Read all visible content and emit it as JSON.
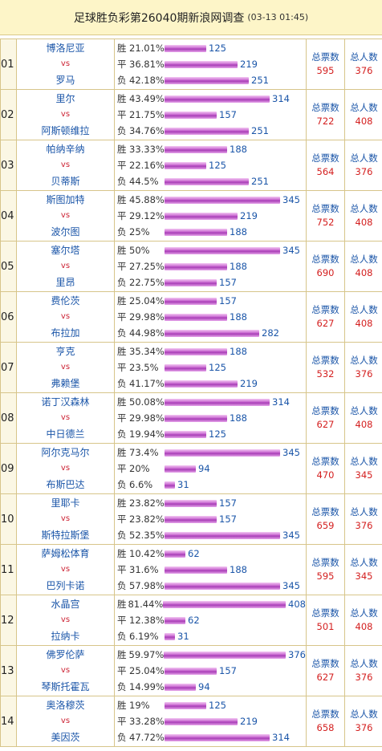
{
  "header": {
    "title": "足球胜负彩第26040期新浪网调查",
    "time": "(03-13 01:45)"
  },
  "labels": {
    "win": "胜",
    "draw": "平",
    "loss": "负",
    "vs": "vs",
    "total_votes": "总票数",
    "total_people": "总人数"
  },
  "colors": {
    "team": "#1a55a8",
    "vs": "#c23333",
    "value": "#d42020",
    "bar": "#c766cf",
    "header_bg": "#fdf5c8"
  },
  "matches": [
    {
      "no": "01",
      "home": "博洛尼亚",
      "away": "罗马",
      "win": {
        "pct": "21.01%",
        "count": "125",
        "v": 125
      },
      "draw": {
        "pct": "36.81%",
        "count": "219",
        "v": 219
      },
      "loss": {
        "pct": "42.18%",
        "count": "251",
        "v": 251
      },
      "total": "595",
      "people": "376"
    },
    {
      "no": "02",
      "home": "里尔",
      "away": "阿斯顿维拉",
      "win": {
        "pct": "43.49%",
        "count": "314",
        "v": 314
      },
      "draw": {
        "pct": "21.75%",
        "count": "157",
        "v": 157
      },
      "loss": {
        "pct": "34.76%",
        "count": "251",
        "v": 251
      },
      "total": "722",
      "people": "408"
    },
    {
      "no": "03",
      "home": "帕纳辛纳",
      "away": "贝蒂斯",
      "win": {
        "pct": "33.33%",
        "count": "188",
        "v": 188
      },
      "draw": {
        "pct": "22.16%",
        "count": "125",
        "v": 125
      },
      "loss": {
        "pct": "44.5%",
        "count": "251",
        "v": 251
      },
      "total": "564",
      "people": "376"
    },
    {
      "no": "04",
      "home": "斯图加特",
      "away": "波尔图",
      "win": {
        "pct": "45.88%",
        "count": "345",
        "v": 345
      },
      "draw": {
        "pct": "29.12%",
        "count": "219",
        "v": 219
      },
      "loss": {
        "pct": "25%",
        "count": "188",
        "v": 188
      },
      "total": "752",
      "people": "408"
    },
    {
      "no": "05",
      "home": "塞尔塔",
      "away": "里昂",
      "win": {
        "pct": "50%",
        "count": "345",
        "v": 345
      },
      "draw": {
        "pct": "27.25%",
        "count": "188",
        "v": 188
      },
      "loss": {
        "pct": "22.75%",
        "count": "157",
        "v": 157
      },
      "total": "690",
      "people": "408"
    },
    {
      "no": "06",
      "home": "费伦茨",
      "away": "布拉加",
      "win": {
        "pct": "25.04%",
        "count": "157",
        "v": 157
      },
      "draw": {
        "pct": "29.98%",
        "count": "188",
        "v": 188
      },
      "loss": {
        "pct": "44.98%",
        "count": "282",
        "v": 282
      },
      "total": "627",
      "people": "408"
    },
    {
      "no": "07",
      "home": "亨克",
      "away": "弗赖堡",
      "win": {
        "pct": "35.34%",
        "count": "188",
        "v": 188
      },
      "draw": {
        "pct": "23.5%",
        "count": "125",
        "v": 125
      },
      "loss": {
        "pct": "41.17%",
        "count": "219",
        "v": 219
      },
      "total": "532",
      "people": "376"
    },
    {
      "no": "08",
      "home": "诺丁汉森林",
      "away": "中日德兰",
      "win": {
        "pct": "50.08%",
        "count": "314",
        "v": 314
      },
      "draw": {
        "pct": "29.98%",
        "count": "188",
        "v": 188
      },
      "loss": {
        "pct": "19.94%",
        "count": "125",
        "v": 125
      },
      "total": "627",
      "people": "408"
    },
    {
      "no": "09",
      "home": "阿尔克马尔",
      "away": "布斯巴达",
      "win": {
        "pct": "73.4%",
        "count": "345",
        "v": 345
      },
      "draw": {
        "pct": "20%",
        "count": "94",
        "v": 94
      },
      "loss": {
        "pct": "6.6%",
        "count": "31",
        "v": 31
      },
      "total": "470",
      "people": "345"
    },
    {
      "no": "10",
      "home": "里耶卡",
      "away": "斯特拉斯堡",
      "win": {
        "pct": "23.82%",
        "count": "157",
        "v": 157
      },
      "draw": {
        "pct": "23.82%",
        "count": "157",
        "v": 157
      },
      "loss": {
        "pct": "52.35%",
        "count": "345",
        "v": 345
      },
      "total": "659",
      "people": "376"
    },
    {
      "no": "11",
      "home": "萨姆松体育",
      "away": "巴列卡诺",
      "win": {
        "pct": "10.42%",
        "count": "62",
        "v": 62
      },
      "draw": {
        "pct": "31.6%",
        "count": "188",
        "v": 188
      },
      "loss": {
        "pct": "57.98%",
        "count": "345",
        "v": 345
      },
      "total": "595",
      "people": "345"
    },
    {
      "no": "12",
      "home": "水晶宫",
      "away": "拉纳卡",
      "win": {
        "pct": "81.44%",
        "count": "408",
        "v": 408
      },
      "draw": {
        "pct": "12.38%",
        "count": "62",
        "v": 62
      },
      "loss": {
        "pct": "6.19%",
        "count": "31",
        "v": 31
      },
      "total": "501",
      "people": "408"
    },
    {
      "no": "13",
      "home": "佛罗伦萨",
      "away": "琴斯托霍瓦",
      "win": {
        "pct": "59.97%",
        "count": "376",
        "v": 376
      },
      "draw": {
        "pct": "25.04%",
        "count": "157",
        "v": 157
      },
      "loss": {
        "pct": "14.99%",
        "count": "94",
        "v": 94
      },
      "total": "627",
      "people": "376"
    },
    {
      "no": "14",
      "home": "奥洛穆茨",
      "away": "美因茨",
      "win": {
        "pct": "19%",
        "count": "125",
        "v": 125
      },
      "draw": {
        "pct": "33.28%",
        "count": "219",
        "v": 219
      },
      "loss": {
        "pct": "47.72%",
        "count": "314",
        "v": 314
      },
      "total": "658",
      "people": "376"
    }
  ]
}
